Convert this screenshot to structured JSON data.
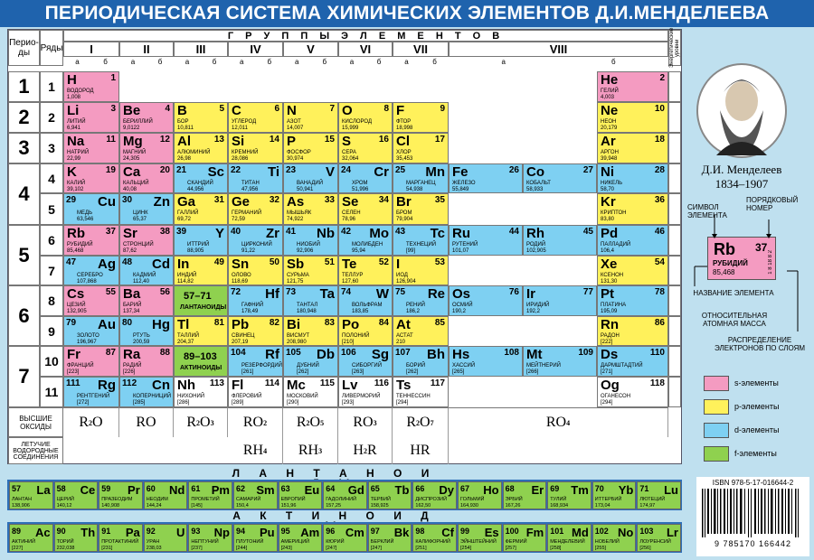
{
  "title": "ПЕРИОДИЧЕСКАЯ СИСТЕМА ХИМИЧЕСКИХ ЭЛЕМЕНТОВ Д.И.МЕНДЕЛЕЕВА",
  "header": {
    "periods": "Перио-ды",
    "rows": "Ряды",
    "groups_title": "Г Р У П П Ы   Э Л Е М Е Н Т О В",
    "sublevels": "Энергетические уровни"
  },
  "groups": [
    {
      "label": "I",
      "a": "а",
      "b": "б"
    },
    {
      "label": "II",
      "a": "а",
      "b": "б"
    },
    {
      "label": "III",
      "a": "а",
      "b": "б"
    },
    {
      "label": "IV",
      "a": "а",
      "b": "б"
    },
    {
      "label": "V",
      "a": "а",
      "b": "б"
    },
    {
      "label": "VI",
      "a": "а",
      "b": "б"
    },
    {
      "label": "VII",
      "a": "а",
      "b": "б"
    },
    {
      "label": "VIII",
      "a": "а",
      "b": "б"
    }
  ],
  "periods": [
    "1",
    "2",
    "3",
    "4",
    "5",
    "6",
    "7"
  ],
  "rows": [
    "1",
    "2",
    "3",
    "4",
    "5",
    "6",
    "7",
    "8",
    "9",
    "10",
    "11"
  ],
  "elements": [
    {
      "sym": "H",
      "num": "1",
      "name": "ВОДОРОД",
      "mass": "1,008",
      "type": "s"
    },
    {
      "sym": "He",
      "num": "2",
      "name": "ГЕЛИЙ",
      "mass": "4,003",
      "type": "s"
    },
    {
      "sym": "Li",
      "num": "3",
      "name": "ЛИТИЙ",
      "mass": "6,941",
      "type": "s"
    },
    {
      "sym": "Be",
      "num": "4",
      "name": "БЕРИЛЛИЙ",
      "mass": "9,0122",
      "type": "s"
    },
    {
      "sym": "B",
      "num": "5",
      "name": "БОР",
      "mass": "10,811",
      "type": "p"
    },
    {
      "sym": "C",
      "num": "6",
      "name": "УГЛЕРОД",
      "mass": "12,011",
      "type": "p"
    },
    {
      "sym": "N",
      "num": "7",
      "name": "АЗОТ",
      "mass": "14,007",
      "type": "p"
    },
    {
      "sym": "O",
      "num": "8",
      "name": "КИСЛОРОД",
      "mass": "15,999",
      "type": "p"
    },
    {
      "sym": "F",
      "num": "9",
      "name": "ФТОР",
      "mass": "18,998",
      "type": "p"
    },
    {
      "sym": "Ne",
      "num": "10",
      "name": "НЕОН",
      "mass": "20,179",
      "type": "p"
    },
    {
      "sym": "Na",
      "num": "11",
      "name": "НАТРИЙ",
      "mass": "22,99",
      "type": "s"
    },
    {
      "sym": "Mg",
      "num": "12",
      "name": "МАГНИЙ",
      "mass": "24,305",
      "type": "s"
    },
    {
      "sym": "Al",
      "num": "13",
      "name": "АЛЮМИНИЙ",
      "mass": "26,98",
      "type": "p"
    },
    {
      "sym": "Si",
      "num": "14",
      "name": "КРЕМНИЙ",
      "mass": "28,086",
      "type": "p"
    },
    {
      "sym": "P",
      "num": "15",
      "name": "ФОСФОР",
      "mass": "30,974",
      "type": "p"
    },
    {
      "sym": "S",
      "num": "16",
      "name": "СЕРА",
      "mass": "32,064",
      "type": "p"
    },
    {
      "sym": "Cl",
      "num": "17",
      "name": "ХЛОР",
      "mass": "35,453",
      "type": "p"
    },
    {
      "sym": "Ar",
      "num": "18",
      "name": "АРГОН",
      "mass": "39,948",
      "type": "p"
    },
    {
      "sym": "K",
      "num": "19",
      "name": "КАЛИЙ",
      "mass": "39,102",
      "type": "s"
    },
    {
      "sym": "Ca",
      "num": "20",
      "name": "КАЛЬЦИЙ",
      "mass": "40,08",
      "type": "s"
    },
    {
      "sym": "Sc",
      "num": "21",
      "name": "СКАНДИЙ",
      "mass": "44,956",
      "type": "d"
    },
    {
      "sym": "Ti",
      "num": "22",
      "name": "ТИТАН",
      "mass": "47,956",
      "type": "d"
    },
    {
      "sym": "V",
      "num": "23",
      "name": "ВАНАДИЙ",
      "mass": "50,941",
      "type": "d"
    },
    {
      "sym": "Cr",
      "num": "24",
      "name": "ХРОМ",
      "mass": "51,996",
      "type": "d"
    },
    {
      "sym": "Mn",
      "num": "25",
      "name": "МАРГАНЕЦ",
      "mass": "54,938",
      "type": "d"
    },
    {
      "sym": "Fe",
      "num": "26",
      "name": "ЖЕЛЕЗО",
      "mass": "55,849",
      "type": "d"
    },
    {
      "sym": "Co",
      "num": "27",
      "name": "КОБАЛЬТ",
      "mass": "58,933",
      "type": "d"
    },
    {
      "sym": "Ni",
      "num": "28",
      "name": "НИКЕЛЬ",
      "mass": "58,70",
      "type": "d"
    },
    {
      "sym": "Cu",
      "num": "29",
      "name": "МЕДЬ",
      "mass": "63,546",
      "type": "d"
    },
    {
      "sym": "Zn",
      "num": "30",
      "name": "ЦИНК",
      "mass": "65,37",
      "type": "d"
    },
    {
      "sym": "Ga",
      "num": "31",
      "name": "ГАЛЛИЙ",
      "mass": "69,72",
      "type": "p"
    },
    {
      "sym": "Ge",
      "num": "32",
      "name": "ГЕРМАНИЙ",
      "mass": "72,59",
      "type": "p"
    },
    {
      "sym": "As",
      "num": "33",
      "name": "МЫШЬЯК",
      "mass": "74,922",
      "type": "p"
    },
    {
      "sym": "Se",
      "num": "34",
      "name": "СЕЛЕН",
      "mass": "78,96",
      "type": "p"
    },
    {
      "sym": "Br",
      "num": "35",
      "name": "БРОМ",
      "mass": "79,904",
      "type": "p"
    },
    {
      "sym": "Kr",
      "num": "36",
      "name": "КРИПТОН",
      "mass": "83,80",
      "type": "p"
    },
    {
      "sym": "Rb",
      "num": "37",
      "name": "РУБИДИЙ",
      "mass": "85,468",
      "type": "s"
    },
    {
      "sym": "Sr",
      "num": "38",
      "name": "СТРОНЦИЙ",
      "mass": "87,62",
      "type": "s"
    },
    {
      "sym": "Y",
      "num": "39",
      "name": "ИТТРИЙ",
      "mass": "88,905",
      "type": "d"
    },
    {
      "sym": "Zr",
      "num": "40",
      "name": "ЦИРКОНИЙ",
      "mass": "91,22",
      "type": "d"
    },
    {
      "sym": "Nb",
      "num": "41",
      "name": "НИОБИЙ",
      "mass": "92,906",
      "type": "d"
    },
    {
      "sym": "Mo",
      "num": "42",
      "name": "МОЛИБДЕН",
      "mass": "95,94",
      "type": "d"
    },
    {
      "sym": "Tc",
      "num": "43",
      "name": "ТЕХНЕЦИЙ",
      "mass": "[99]",
      "type": "d"
    },
    {
      "sym": "Ru",
      "num": "44",
      "name": "РУТЕНИЙ",
      "mass": "101,07",
      "type": "d"
    },
    {
      "sym": "Rh",
      "num": "45",
      "name": "РОДИЙ",
      "mass": "102,905",
      "type": "d"
    },
    {
      "sym": "Pd",
      "num": "46",
      "name": "ПАЛЛАДИЙ",
      "mass": "106,4",
      "type": "d"
    },
    {
      "sym": "Ag",
      "num": "47",
      "name": "СЕРЕБРО",
      "mass": "107,868",
      "type": "d"
    },
    {
      "sym": "Cd",
      "num": "48",
      "name": "КАДМИЙ",
      "mass": "112,40",
      "type": "d"
    },
    {
      "sym": "In",
      "num": "49",
      "name": "ИНДИЙ",
      "mass": "114,82",
      "type": "p"
    },
    {
      "sym": "Sn",
      "num": "50",
      "name": "ОЛОВО",
      "mass": "118,69",
      "type": "p"
    },
    {
      "sym": "Sb",
      "num": "51",
      "name": "СУРЬМА",
      "mass": "121,75",
      "type": "p"
    },
    {
      "sym": "Te",
      "num": "52",
      "name": "ТЕЛЛУР",
      "mass": "127,60",
      "type": "p"
    },
    {
      "sym": "I",
      "num": "53",
      "name": "ИОД",
      "mass": "126,904",
      "type": "p"
    },
    {
      "sym": "Xe",
      "num": "54",
      "name": "КСЕНОН",
      "mass": "131,30",
      "type": "p"
    },
    {
      "sym": "Cs",
      "num": "55",
      "name": "ЦЕЗИЙ",
      "mass": "132,905",
      "type": "s"
    },
    {
      "sym": "Ba",
      "num": "56",
      "name": "БАРИЙ",
      "mass": "137,34",
      "type": "s"
    },
    {
      "sym": "57–71",
      "num": "",
      "name": "ЛАНТАНОИДЫ",
      "mass": "",
      "type": "f"
    },
    {
      "sym": "Hf",
      "num": "72",
      "name": "ГАФНИЙ",
      "mass": "178,49",
      "type": "d"
    },
    {
      "sym": "Ta",
      "num": "73",
      "name": "ТАНТАЛ",
      "mass": "180,948",
      "type": "d"
    },
    {
      "sym": "W",
      "num": "74",
      "name": "ВОЛЬФРАМ",
      "mass": "183,85",
      "type": "d"
    },
    {
      "sym": "Re",
      "num": "75",
      "name": "РЕНИЙ",
      "mass": "186,2",
      "type": "d"
    },
    {
      "sym": "Os",
      "num": "76",
      "name": "ОСМИЙ",
      "mass": "190,2",
      "type": "d"
    },
    {
      "sym": "Ir",
      "num": "77",
      "name": "ИРИДИЙ",
      "mass": "192,2",
      "type": "d"
    },
    {
      "sym": "Pt",
      "num": "78",
      "name": "ПЛАТИНА",
      "mass": "195,09",
      "type": "d"
    },
    {
      "sym": "Au",
      "num": "79",
      "name": "ЗОЛОТО",
      "mass": "196,967",
      "type": "d"
    },
    {
      "sym": "Hg",
      "num": "80",
      "name": "РТУТЬ",
      "mass": "200,59",
      "type": "d"
    },
    {
      "sym": "Tl",
      "num": "81",
      "name": "ТАЛЛИЙ",
      "mass": "204,37",
      "type": "p"
    },
    {
      "sym": "Pb",
      "num": "82",
      "name": "СВИНЕЦ",
      "mass": "207,19",
      "type": "p"
    },
    {
      "sym": "Bi",
      "num": "83",
      "name": "ВИСМУТ",
      "mass": "208,980",
      "type": "p"
    },
    {
      "sym": "Po",
      "num": "84",
      "name": "ПОЛОНИЙ",
      "mass": "[210]",
      "type": "p"
    },
    {
      "sym": "At",
      "num": "85",
      "name": "АСТАТ",
      "mass": "210",
      "type": "p"
    },
    {
      "sym": "Rn",
      "num": "86",
      "name": "РАДОН",
      "mass": "[222]",
      "type": "p"
    },
    {
      "sym": "Fr",
      "num": "87",
      "name": "ФРАНЦИЙ",
      "mass": "[223]",
      "type": "s"
    },
    {
      "sym": "Ra",
      "num": "88",
      "name": "РАДИЙ",
      "mass": "[226]",
      "type": "s"
    },
    {
      "sym": "89–103",
      "num": "",
      "name": "АКТИНОИДЫ",
      "mass": "",
      "type": "f"
    },
    {
      "sym": "Rf",
      "num": "104",
      "name": "РЕЗЕРФОРДИЙ",
      "mass": "[261]",
      "type": "d"
    },
    {
      "sym": "Db",
      "num": "105",
      "name": "ДУБНИЙ",
      "mass": "[262]",
      "type": "d"
    },
    {
      "sym": "Sg",
      "num": "106",
      "name": "СИБОРГИЙ",
      "mass": "[263]",
      "type": "d"
    },
    {
      "sym": "Bh",
      "num": "107",
      "name": "БОРИЙ",
      "mass": "[262]",
      "type": "d"
    },
    {
      "sym": "Hs",
      "num": "108",
      "name": "ХАССИЙ",
      "mass": "[265]",
      "type": "d"
    },
    {
      "sym": "Mt",
      "num": "109",
      "name": "МЕЙТНЕРИЙ",
      "mass": "[266]",
      "type": "d"
    },
    {
      "sym": "Ds",
      "num": "110",
      "name": "ДАРМШТАДТИЙ",
      "mass": "[271]",
      "type": "d"
    },
    {
      "sym": "Rg",
      "num": "111",
      "name": "РЕНТГЕНИЙ",
      "mass": "[272]",
      "type": "d"
    },
    {
      "sym": "Cn",
      "num": "112",
      "name": "КОПЕРНИЦИЙ",
      "mass": "[285]",
      "type": "d"
    },
    {
      "sym": "Nh",
      "num": "113",
      "name": "НИХОНИЙ",
      "mass": "[286]",
      "type": "w"
    },
    {
      "sym": "Fl",
      "num": "114",
      "name": "ФЛЕРОВИЙ",
      "mass": "[289]",
      "type": "w"
    },
    {
      "sym": "Mc",
      "num": "115",
      "name": "МОСКОВИЙ",
      "mass": "[290]",
      "type": "w"
    },
    {
      "sym": "Lv",
      "num": "116",
      "name": "ЛИВЕРМОРИЙ",
      "mass": "[293]",
      "type": "w"
    },
    {
      "sym": "Ts",
      "num": "117",
      "name": "ТЕННЕССИН",
      "mass": "[294]",
      "type": "w"
    },
    {
      "sym": "Og",
      "num": "118",
      "name": "ОГАНЕСОН",
      "mass": "[294]",
      "type": "w"
    }
  ],
  "oxides": {
    "label": "ВЫСШИЕ ОКСИДЫ",
    "items": [
      "R2O",
      "RO",
      "R2O3",
      "RO2",
      "R2O5",
      "RO3",
      "R2O7",
      "RO4"
    ]
  },
  "hydrides": {
    "label": "ЛЕТУЧИЕ ВОДОРОДНЫЕ СОЕДИНЕНИЯ",
    "items": [
      "RH4",
      "RH3",
      "H2R",
      "HR"
    ]
  },
  "lanthanoids_title": "Л А Н Т А Н О И Д Ы",
  "actinoids_title": "А К Т И Н О И Д Ы",
  "lanthanoids": [
    {
      "sym": "La",
      "num": "57",
      "name": "ЛАНТАН",
      "mass": "138,906"
    },
    {
      "sym": "Ce",
      "num": "58",
      "name": "ЦЕРИЙ",
      "mass": "140,12"
    },
    {
      "sym": "Pr",
      "num": "59",
      "name": "ПРАЗЕОДИМ",
      "mass": "140,908"
    },
    {
      "sym": "Nd",
      "num": "60",
      "name": "НЕОДИМ",
      "mass": "144,24"
    },
    {
      "sym": "Pm",
      "num": "61",
      "name": "ПРОМЕТИЙ",
      "mass": "[145]"
    },
    {
      "sym": "Sm",
      "num": "62",
      "name": "САМАРИЙ",
      "mass": "150,4"
    },
    {
      "sym": "Eu",
      "num": "63",
      "name": "ЕВРОПИЙ",
      "mass": "151,96"
    },
    {
      "sym": "Gd",
      "num": "64",
      "name": "ГАДОЛИНИЙ",
      "mass": "157,25"
    },
    {
      "sym": "Tb",
      "num": "65",
      "name": "ТЕРБИЙ",
      "mass": "158,925"
    },
    {
      "sym": "Dy",
      "num": "66",
      "name": "ДИСПРОЗИЙ",
      "mass": "162,50"
    },
    {
      "sym": "Ho",
      "num": "67",
      "name": "ГОЛЬМИЙ",
      "mass": "164,930"
    },
    {
      "sym": "Er",
      "num": "68",
      "name": "ЭРБИЙ",
      "mass": "167,26"
    },
    {
      "sym": "Tm",
      "num": "69",
      "name": "ТУЛИЙ",
      "mass": "168,934"
    },
    {
      "sym": "Yb",
      "num": "70",
      "name": "ИТТЕРБИЙ",
      "mass": "173,04"
    },
    {
      "sym": "Lu",
      "num": "71",
      "name": "ЛЮТЕЦИЙ",
      "mass": "174,97"
    }
  ],
  "actinoids": [
    {
      "sym": "Ac",
      "num": "89",
      "name": "АКТИНИЙ",
      "mass": "[227]"
    },
    {
      "sym": "Th",
      "num": "90",
      "name": "ТОРИЙ",
      "mass": "232,038"
    },
    {
      "sym": "Pa",
      "num": "91",
      "name": "ПРОТАКТИНИЙ",
      "mass": "[231]"
    },
    {
      "sym": "U",
      "num": "92",
      "name": "УРАН",
      "mass": "238,03"
    },
    {
      "sym": "Np",
      "num": "93",
      "name": "НЕПТУНИЙ",
      "mass": "[237]"
    },
    {
      "sym": "Pu",
      "num": "94",
      "name": "ПЛУТОНИЙ",
      "mass": "[244]"
    },
    {
      "sym": "Am",
      "num": "95",
      "name": "АМЕРИЦИЙ",
      "mass": "[243]"
    },
    {
      "sym": "Cm",
      "num": "96",
      "name": "КЮРИЙ",
      "mass": "[247]"
    },
    {
      "sym": "Bk",
      "num": "97",
      "name": "БЕРКЛИЙ",
      "mass": "[247]"
    },
    {
      "sym": "Cf",
      "num": "98",
      "name": "КАЛИФОРНИЙ",
      "mass": "[251]"
    },
    {
      "sym": "Es",
      "num": "99",
      "name": "ЭЙНШТЕЙНИЙ",
      "mass": "[254]"
    },
    {
      "sym": "Fm",
      "num": "100",
      "name": "ФЕРМИЙ",
      "mass": "[257]"
    },
    {
      "sym": "Md",
      "num": "101",
      "name": "МЕНДЕЛЕВИЙ",
      "mass": "[258]"
    },
    {
      "sym": "No",
      "num": "102",
      "name": "НОБЕЛИЙ",
      "mass": "[255]"
    },
    {
      "sym": "Lr",
      "num": "103",
      "name": "ЛОУРЕНСИЙ",
      "mass": "[256]"
    }
  ],
  "portrait": {
    "name": "Д.И. Менделеев",
    "years": "1834–1907"
  },
  "legend_key": {
    "symbol_label": "СИМВОЛ ЭЛЕМЕНТА",
    "number_label": "ПОРЯДКОВЫЙ НОМЕР",
    "name_label": "НАЗВАНИЕ ЭЛЕМЕНТА",
    "mass_label": "ОТНОСИТЕЛЬНАЯ АТОМНАЯ МАССА",
    "dist_label": "РАСПРЕДЕЛЕНИЕ ЭЛЕКТРОНОВ ПО СЛОЯМ",
    "sample": {
      "sym": "Rb",
      "num": "37",
      "name": "РУБИДИЙ",
      "mass": "85,468",
      "shells": "1 8 18 8 2"
    }
  },
  "legend": [
    {
      "label": "s-элементы",
      "color": "#f49bc1"
    },
    {
      "label": "p-элементы",
      "color": "#fff15b"
    },
    {
      "label": "d-элементы",
      "color": "#7ed0f2"
    },
    {
      "label": "f-элементы",
      "color": "#8fd14f"
    }
  ],
  "isbn": "ISBN 978-5-17-016644-2",
  "barcode_digits": "9 785170 166442"
}
